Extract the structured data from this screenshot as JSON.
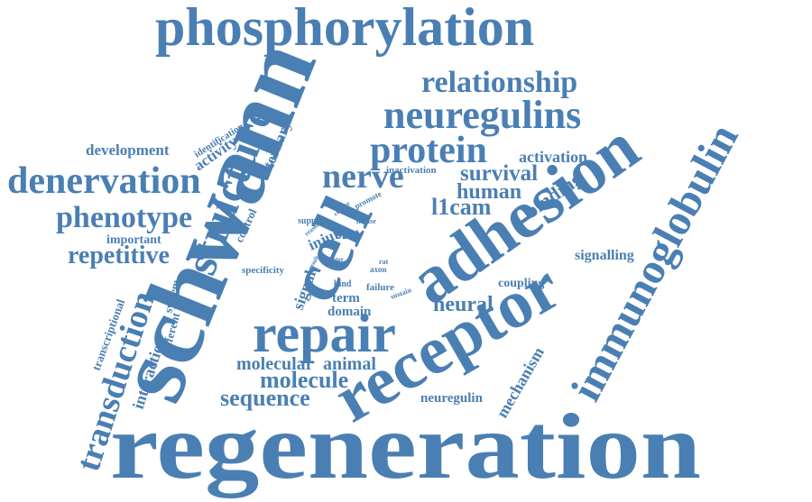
{
  "color": "#4a7fb3",
  "words": [
    "phosphorylation",
    "relationship",
    "neuregulins",
    "protein",
    "activation",
    "schwann",
    "structure",
    "tertiary",
    "identification",
    "development",
    "activity",
    "denervation",
    "nerve",
    "survival",
    "human",
    "l1cam",
    "binding",
    "immunoglobulin",
    "inactivation",
    "phenotype",
    "important",
    "repetitive",
    "control",
    "support",
    "reason",
    "culture",
    "promote",
    "mouse",
    "injury",
    "stat",
    "signal",
    "specificity",
    "factor",
    "result",
    "rat",
    "axon",
    "bind",
    "failure",
    "sustain",
    "term",
    "domain",
    "cell",
    "adhesion",
    "signalling",
    "coupling",
    "neural",
    "transcriptional",
    "system",
    "different",
    "transduction",
    "interaction",
    "repair",
    "receptor",
    "mechanism",
    "molecular",
    "animal",
    "molecule",
    "sequence",
    "neuregulin",
    "regeneration"
  ]
}
